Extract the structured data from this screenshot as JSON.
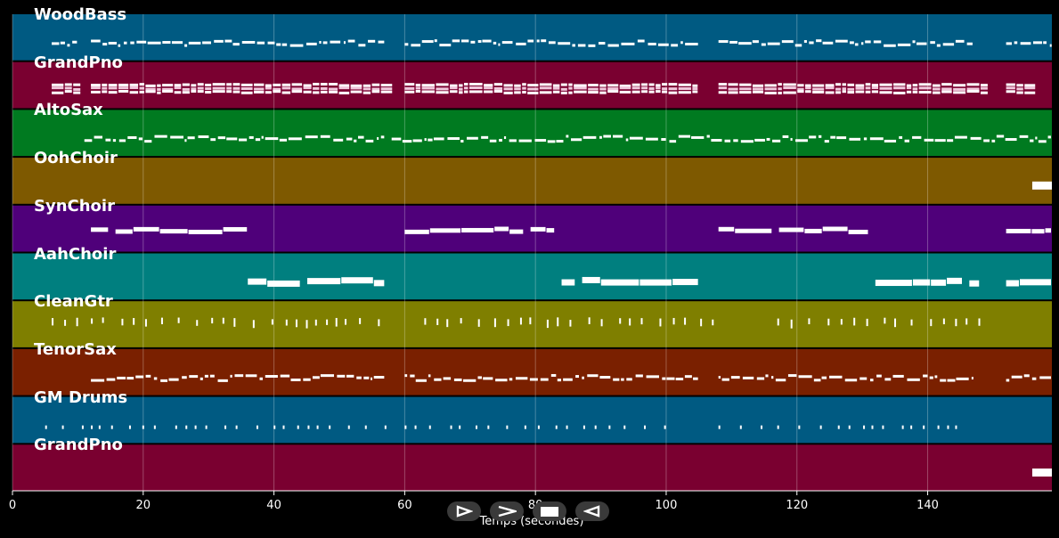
{
  "chart_data": {
    "type": "piano-roll",
    "xlabel": "Temps (secondes)",
    "xlim": [
      0,
      159
    ],
    "xticks": [
      0,
      20,
      40,
      60,
      80,
      100,
      120,
      140
    ],
    "tracks": [
      {
        "name": "WoodBass",
        "color": "#005a82",
        "pattern": "bass",
        "segments": [
          [
            6,
            10
          ],
          [
            12,
            57
          ],
          [
            60,
            105
          ],
          [
            108,
            147
          ],
          [
            152,
            159
          ]
        ]
      },
      {
        "name": "GrandPno",
        "color": "#7a0030",
        "pattern": "chords",
        "segments": [
          [
            6,
            10
          ],
          [
            12,
            57
          ],
          [
            60,
            105
          ],
          [
            108,
            149
          ],
          [
            152,
            156
          ]
        ]
      },
      {
        "name": "AltoSax",
        "color": "#007a20",
        "pattern": "melody",
        "segments": [
          [
            11,
            57
          ],
          [
            58,
            159
          ]
        ]
      },
      {
        "name": "OohChoir",
        "color": "#7e5900",
        "pattern": "block",
        "segments": [
          [
            156,
            159
          ]
        ]
      },
      {
        "name": "SynChoir",
        "color": "#4f007a",
        "pattern": "pad",
        "segments": [
          [
            12,
            36
          ],
          [
            60,
            83
          ],
          [
            108,
            131
          ],
          [
            152,
            159
          ]
        ]
      },
      {
        "name": "AahChoir",
        "color": "#007f7f",
        "pattern": "pad",
        "segments": [
          [
            36,
            57
          ],
          [
            84,
            105
          ],
          [
            132,
            148
          ],
          [
            152,
            159
          ]
        ]
      },
      {
        "name": "CleanGtr",
        "color": "#7f7f00",
        "pattern": "stabs",
        "segments": [
          [
            6,
            10
          ],
          [
            12,
            57
          ],
          [
            63,
            108
          ],
          [
            117,
            148
          ]
        ]
      },
      {
        "name": "TenorSax",
        "color": "#7a2000",
        "pattern": "melody",
        "segments": [
          [
            12,
            57
          ],
          [
            60,
            105
          ],
          [
            108,
            147
          ],
          [
            152,
            159
          ]
        ]
      },
      {
        "name": "GM Drums",
        "color": "#005a82",
        "pattern": "drums",
        "segments": [
          [
            5,
            57
          ],
          [
            60,
            101
          ],
          [
            108,
            146
          ]
        ]
      },
      {
        "name": "GrandPno",
        "color": "#7a0030",
        "pattern": "block",
        "segments": [
          [
            156,
            159
          ]
        ]
      }
    ]
  },
  "controls": {
    "play": "play-forward",
    "fast": "fast-forward",
    "stop": "stop",
    "rewind": "play-backward"
  }
}
